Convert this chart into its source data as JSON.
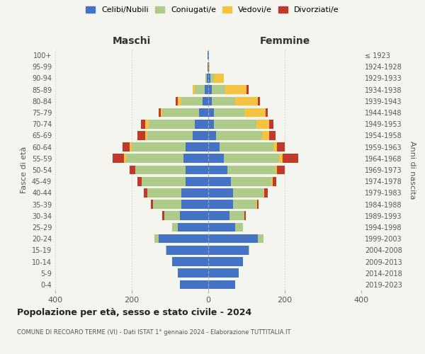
{
  "age_groups": [
    "0-4",
    "5-9",
    "10-14",
    "15-19",
    "20-24",
    "25-29",
    "30-34",
    "35-39",
    "40-44",
    "45-49",
    "50-54",
    "55-59",
    "60-64",
    "65-69",
    "70-74",
    "75-79",
    "80-84",
    "85-89",
    "90-94",
    "95-99",
    "100+"
  ],
  "birth_years": [
    "2019-2023",
    "2014-2018",
    "2009-2013",
    "2004-2008",
    "1999-2003",
    "1994-1998",
    "1989-1993",
    "1984-1988",
    "1979-1983",
    "1974-1978",
    "1969-1973",
    "1964-1968",
    "1959-1963",
    "1954-1958",
    "1949-1953",
    "1944-1948",
    "1939-1943",
    "1934-1938",
    "1929-1933",
    "1924-1928",
    "≤ 1923"
  ],
  "maschi": {
    "celibi": [
      75,
      80,
      95,
      110,
      130,
      80,
      75,
      70,
      70,
      60,
      60,
      65,
      60,
      40,
      35,
      25,
      15,
      10,
      3,
      2,
      2
    ],
    "coniugati": [
      0,
      0,
      0,
      2,
      10,
      15,
      40,
      75,
      90,
      115,
      130,
      150,
      140,
      120,
      120,
      95,
      55,
      25,
      5,
      0,
      0
    ],
    "vedovi": [
      0,
      0,
      0,
      0,
      0,
      0,
      0,
      0,
      0,
      0,
      0,
      5,
      5,
      5,
      10,
      5,
      10,
      5,
      0,
      0,
      0
    ],
    "divorziati": [
      0,
      0,
      0,
      0,
      0,
      0,
      5,
      5,
      8,
      10,
      15,
      30,
      20,
      20,
      10,
      5,
      5,
      0,
      0,
      0,
      0
    ]
  },
  "femmine": {
    "nubili": [
      70,
      80,
      90,
      105,
      130,
      70,
      55,
      65,
      65,
      60,
      50,
      40,
      30,
      20,
      15,
      15,
      10,
      10,
      5,
      2,
      2
    ],
    "coniugate": [
      0,
      0,
      0,
      2,
      15,
      20,
      40,
      60,
      80,
      105,
      125,
      145,
      140,
      120,
      110,
      80,
      60,
      35,
      10,
      0,
      0
    ],
    "vedove": [
      0,
      0,
      0,
      0,
      0,
      0,
      0,
      2,
      2,
      3,
      5,
      10,
      10,
      20,
      35,
      55,
      60,
      55,
      25,
      2,
      0
    ],
    "divorziate": [
      0,
      0,
      0,
      0,
      0,
      0,
      3,
      5,
      8,
      10,
      20,
      40,
      20,
      15,
      10,
      5,
      5,
      5,
      0,
      0,
      0
    ]
  },
  "colors": {
    "celibi_nubili": "#4472C4",
    "coniugati": "#AECB8A",
    "vedovi": "#F5C342",
    "divorziati": "#C0392B"
  },
  "title": "Popolazione per età, sesso e stato civile - 2024",
  "subtitle": "COMUNE DI RECOARO TERME (VI) - Dati ISTAT 1° gennaio 2024 - Elaborazione TUTTITALIA.IT",
  "xlabel_left": "Maschi",
  "xlabel_right": "Femmine",
  "ylabel_left": "Fasce di età",
  "ylabel_right": "Anni di nascita",
  "xlim": 400,
  "xticks": [
    -400,
    -200,
    0,
    200,
    400
  ],
  "legend_labels": [
    "Celibi/Nubili",
    "Coniugati/e",
    "Vedovi/e",
    "Divorziati/e"
  ],
  "background_color": "#f5f5f0",
  "grid_color": "#cccccc"
}
